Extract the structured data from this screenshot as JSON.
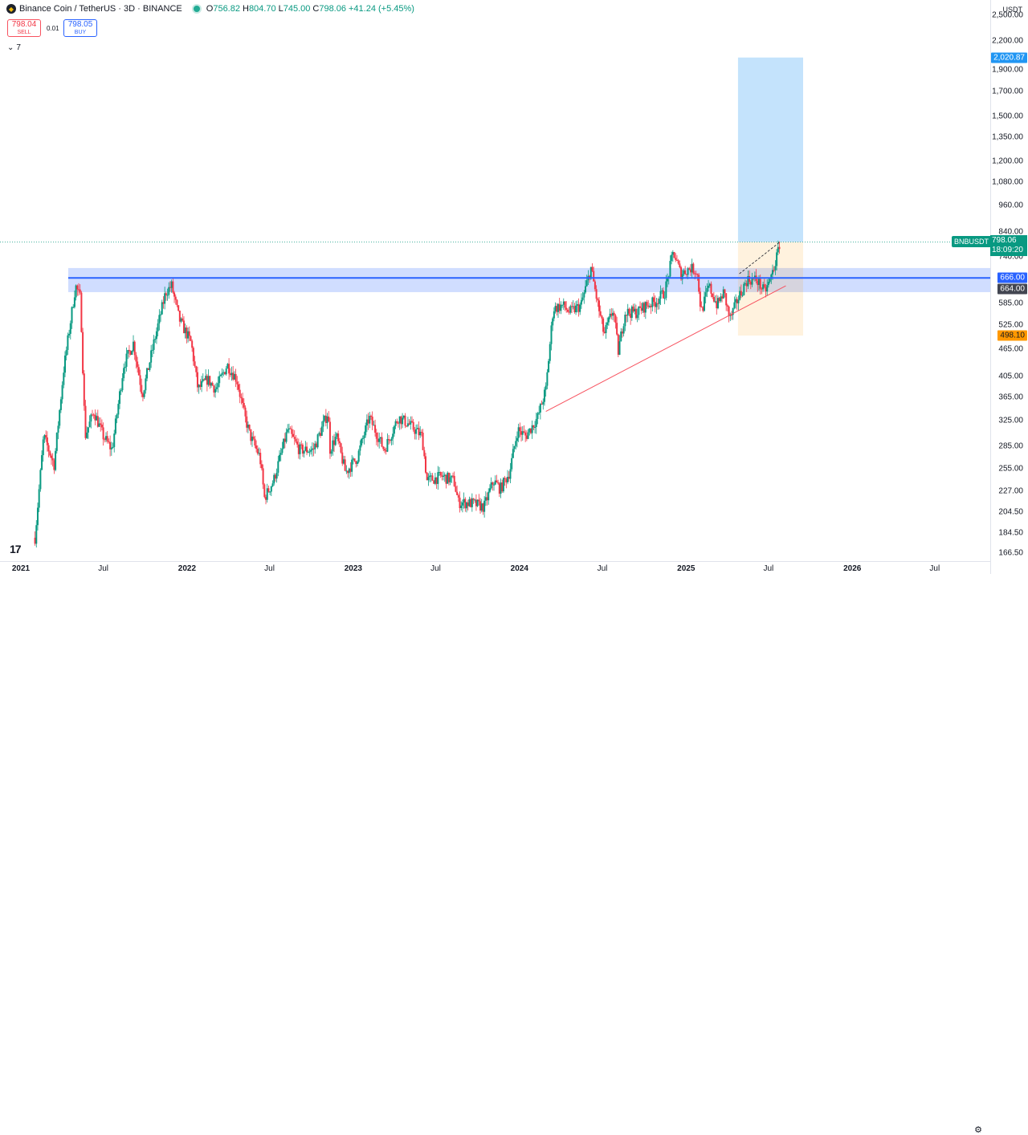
{
  "header": {
    "title": "Binance Coin / TetherUS · 3D · BINANCE",
    "ohlc": [
      {
        "label": "O",
        "value": "756.82"
      },
      {
        "label": "H",
        "value": "804.70"
      },
      {
        "label": "L",
        "value": "745.00"
      },
      {
        "label": "C",
        "value": "798.06"
      }
    ],
    "change": "+41.24 (+5.45%)"
  },
  "trade": {
    "sell_price": "798.04",
    "sell_label": "SELL",
    "spread": "0.01",
    "buy_price": "798.05",
    "buy_label": "BUY"
  },
  "indicators_count": "7",
  "currency": "USDT",
  "price_axis": {
    "labels": [
      "2,500.00",
      "2,200.00",
      "1,900.00",
      "1,700.00",
      "1,500.00",
      "1,350.00",
      "1,200.00",
      "1,080.00",
      "960.00",
      "840.00",
      "740.00",
      "585.00",
      "525.00",
      "465.00",
      "405.00",
      "365.00",
      "325.00",
      "285.00",
      "255.00",
      "227.00",
      "204.50",
      "184.50",
      "166.50"
    ],
    "tags": {
      "target": "2,020.87",
      "resistance_top": "666.00",
      "resistance_bottom": "664.00",
      "stop": "498.10"
    },
    "last": {
      "symbol": "BNBUSDT",
      "price": "798.06",
      "countdown": "18:09:20"
    }
  },
  "time_axis": [
    {
      "label": "2021",
      "year": true
    },
    {
      "label": "Jul",
      "year": false
    },
    {
      "label": "2022",
      "year": true
    },
    {
      "label": "Jul",
      "year": false
    },
    {
      "label": "2023",
      "year": true
    },
    {
      "label": "Jul",
      "year": false
    },
    {
      "label": "2024",
      "year": true
    },
    {
      "label": "Jul",
      "year": false
    },
    {
      "label": "2025",
      "year": true
    },
    {
      "label": "Jul",
      "year": false
    },
    {
      "label": "2026",
      "year": true
    },
    {
      "label": "Jul",
      "year": false
    }
  ],
  "colors": {
    "up": "#089981",
    "down": "#f23645",
    "level_line": "#2962ff",
    "level_zone": "rgba(41,98,255,0.22)",
    "target_zone": "rgba(100,181,246,0.38)",
    "stop_zone": "rgba(255,152,0,0.13)",
    "trendline": "#f7525f"
  },
  "chart_data": {
    "type": "candlestick",
    "symbol": "BNBUSDT",
    "interval": "3D",
    "scale": "log",
    "ylim": [
      160,
      2700
    ],
    "xlim": [
      "2021-01-01",
      "2026-10-31"
    ],
    "close_path": [
      [
        "2021-02-01",
        180
      ],
      [
        "2021-02-20",
        300
      ],
      [
        "2021-03-15",
        260
      ],
      [
        "2021-04-05",
        420
      ],
      [
        "2021-05-01",
        640
      ],
      [
        "2021-05-12",
        600
      ],
      [
        "2021-05-22",
        300
      ],
      [
        "2021-06-10",
        340
      ],
      [
        "2021-07-01",
        300
      ],
      [
        "2021-07-20",
        280
      ],
      [
        "2021-08-15",
        430
      ],
      [
        "2021-09-05",
        480
      ],
      [
        "2021-09-25",
        370
      ],
      [
        "2021-10-20",
        480
      ],
      [
        "2021-11-15",
        620
      ],
      [
        "2021-11-28",
        640
      ],
      [
        "2021-12-15",
        540
      ],
      [
        "2022-01-10",
        480
      ],
      [
        "2022-01-25",
        380
      ],
      [
        "2022-02-15",
        400
      ],
      [
        "2022-03-05",
        380
      ],
      [
        "2022-03-30",
        430
      ],
      [
        "2022-04-20",
        400
      ],
      [
        "2022-05-08",
        330
      ],
      [
        "2022-05-20",
        300
      ],
      [
        "2022-06-10",
        270
      ],
      [
        "2022-06-20",
        220
      ],
      [
        "2022-07-10",
        240
      ],
      [
        "2022-08-10",
        310
      ],
      [
        "2022-09-05",
        280
      ],
      [
        "2022-10-05",
        280
      ],
      [
        "2022-10-28",
        320
      ],
      [
        "2022-11-07",
        340
      ],
      [
        "2022-11-10",
        280
      ],
      [
        "2022-11-25",
        300
      ],
      [
        "2022-12-15",
        250
      ],
      [
        "2023-01-10",
        270
      ],
      [
        "2023-02-05",
        330
      ],
      [
        "2023-03-10",
        280
      ],
      [
        "2023-04-10",
        330
      ],
      [
        "2023-05-01",
        320
      ],
      [
        "2023-06-01",
        300
      ],
      [
        "2023-06-12",
        240
      ],
      [
        "2023-07-15",
        245
      ],
      [
        "2023-08-10",
        240
      ],
      [
        "2023-08-20",
        215
      ],
      [
        "2023-09-20",
        214
      ],
      [
        "2023-10-15",
        210
      ],
      [
        "2023-11-05",
        240
      ],
      [
        "2023-11-20",
        230
      ],
      [
        "2023-12-10",
        250
      ],
      [
        "2023-12-28",
        310
      ],
      [
        "2024-01-15",
        300
      ],
      [
        "2024-02-10",
        330
      ],
      [
        "2024-02-28",
        380
      ],
      [
        "2024-03-15",
        570
      ],
      [
        "2024-04-05",
        580
      ],
      [
        "2024-04-20",
        560
      ],
      [
        "2024-05-15",
        580
      ],
      [
        "2024-06-06",
        700
      ],
      [
        "2024-06-20",
        590
      ],
      [
        "2024-07-05",
        500
      ],
      [
        "2024-07-25",
        570
      ],
      [
        "2024-08-05",
        460
      ],
      [
        "2024-08-20",
        560
      ],
      [
        "2024-09-15",
        560
      ],
      [
        "2024-10-05",
        580
      ],
      [
        "2024-10-25",
        590
      ],
      [
        "2024-11-15",
        620
      ],
      [
        "2024-12-04",
        760
      ],
      [
        "2024-12-20",
        680
      ],
      [
        "2025-01-10",
        700
      ],
      [
        "2025-01-25",
        690
      ],
      [
        "2025-02-03",
        560
      ],
      [
        "2025-02-20",
        640
      ],
      [
        "2025-03-10",
        580
      ],
      [
        "2025-03-25",
        620
      ],
      [
        "2025-04-07",
        540
      ],
      [
        "2025-04-25",
        600
      ],
      [
        "2025-05-15",
        660
      ],
      [
        "2025-06-05",
        660
      ],
      [
        "2025-06-22",
        620
      ],
      [
        "2025-07-05",
        660
      ],
      [
        "2025-07-20",
        745
      ],
      [
        "2025-07-26",
        798
      ]
    ],
    "drawings": {
      "horizontal_level": 666,
      "level_zone": [
        620,
        700
      ],
      "long_position": {
        "entry": 798.06,
        "target": 2020.87,
        "stop": 498.1,
        "start": "2025-04-25",
        "end": "2025-09-15"
      },
      "trendline": [
        [
          "2024-02-28",
          340
        ],
        [
          "2025-08-08",
          640
        ]
      ],
      "projection": [
        [
          "2025-04-28",
          680
        ],
        [
          "2025-07-26",
          798
        ]
      ]
    }
  }
}
